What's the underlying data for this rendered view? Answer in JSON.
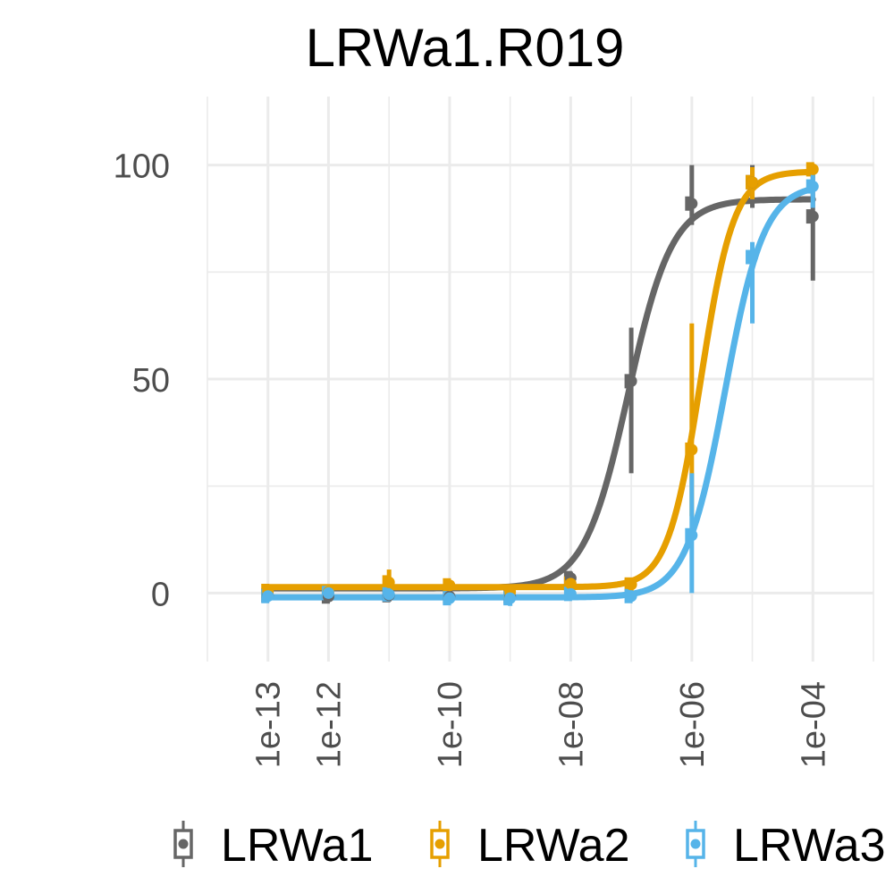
{
  "chart_data": {
    "type": "scatter",
    "title": "LRWa1.R019",
    "xlabel": "",
    "ylabel": "",
    "x_scale": "log10",
    "xlim": [
      1e-14,
      0.001
    ],
    "ylim": [
      -16,
      116
    ],
    "x_ticks": [
      1e-13,
      1e-12,
      1e-10,
      1e-08,
      1e-06,
      0.0001
    ],
    "x_tick_labels": [
      "1e-13",
      "1e-12",
      "1e-10",
      "1e-08",
      "1e-06",
      "1e-04"
    ],
    "y_ticks": [
      0,
      50,
      100
    ],
    "y_tick_labels": [
      "0",
      "50",
      "100"
    ],
    "grid": true,
    "legend_position": "bottom",
    "series": [
      {
        "name": "LRWa1",
        "color": "#666666",
        "x": [
          1e-13,
          1e-12,
          1e-11,
          1e-10,
          1e-09,
          1e-08,
          1e-07,
          1e-06,
          1e-05,
          0.0001
        ],
        "y": [
          -0.5,
          -0.8,
          -0.5,
          -0.8,
          -0.8,
          3.5,
          49.5,
          91,
          96,
          88
        ],
        "ymin": [
          -1.5,
          -2,
          -2,
          -2,
          -2,
          2,
          28,
          86,
          90,
          73
        ],
        "ymax": [
          0.5,
          0.5,
          1,
          0.5,
          0.5,
          5,
          62,
          100,
          100,
          100
        ],
        "fit": {
          "bottom": 1.1,
          "top": 92,
          "log_ec50": -7.05,
          "hill": 1.2
        }
      },
      {
        "name": "LRWa2",
        "color": "#E69F00",
        "x": [
          1e-13,
          1e-12,
          1e-11,
          1e-10,
          1e-09,
          1e-08,
          1e-07,
          1e-06,
          1e-05,
          0.0001
        ],
        "y": [
          0.5,
          0.3,
          2.5,
          1.8,
          0.3,
          2.2,
          2,
          33.5,
          96,
          99
        ],
        "ymin": [
          -0.5,
          -0.7,
          -0.5,
          0.5,
          -0.7,
          0.5,
          0.5,
          18,
          92,
          97
        ],
        "ymax": [
          1.5,
          1.3,
          5.5,
          3,
          1.3,
          3.5,
          3.5,
          63,
          99.5,
          100
        ],
        "fit": {
          "bottom": 1.4,
          "top": 98.5,
          "log_ec50": -5.85,
          "hill": 1.6
        }
      },
      {
        "name": "LRWa3",
        "color": "#56B4E9",
        "x": [
          1e-13,
          1e-12,
          1e-11,
          1e-10,
          1e-09,
          1e-08,
          1e-07,
          1e-06,
          1e-05,
          0.0001
        ],
        "y": [
          -0.7,
          0,
          -0.3,
          -1.2,
          -1.2,
          -0.2,
          -0.7,
          13.5,
          78.5,
          95
        ],
        "ymin": [
          -1.5,
          -1,
          -1.5,
          -2.5,
          -3,
          -1.5,
          -2,
          0,
          63,
          90
        ],
        "ymax": [
          0.2,
          1,
          1,
          0.2,
          0.5,
          1,
          0.5,
          28,
          82,
          100
        ],
        "fit": {
          "bottom": -1,
          "top": 95.5,
          "log_ec50": -5.45,
          "hill": 1.35
        }
      }
    ]
  }
}
